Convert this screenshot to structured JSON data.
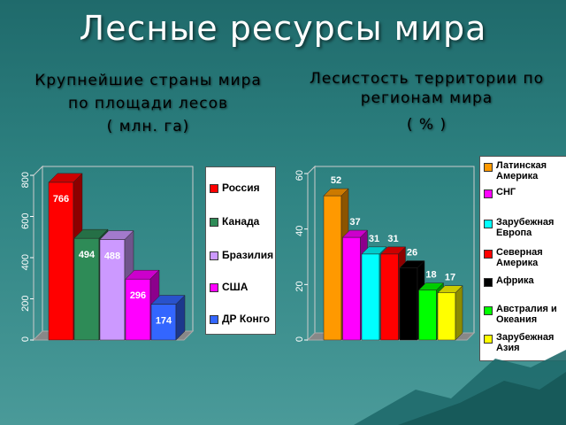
{
  "title": "Лесные ресурсы мира",
  "left_subtitle": [
    "Крупнейшие страны мира",
    "по площади лесов",
    "( млн. га)"
  ],
  "right_subtitle": [
    "Лесистость территории по",
    "регионам мира",
    "( % )"
  ],
  "colors": {
    "russia": "#ff0000",
    "canada": "#2e8b57",
    "brazil": "#cc99ff",
    "usa": "#ff00ff",
    "congo": "#3366ff",
    "latam": "#ff9900",
    "cis": "#ff00ff",
    "europe": "#00ffff",
    "namerica": "#ff0000",
    "africa": "#000000",
    "australia": "#00ff00",
    "asia": "#ffff00"
  },
  "chart_data": [
    {
      "type": "bar",
      "title": "",
      "categories": [
        "Россия",
        "Канада",
        "Бразилия",
        "США",
        "ДР Конго"
      ],
      "values": [
        766,
        494,
        488,
        296,
        174
      ],
      "ylim": [
        0,
        800
      ],
      "yticks": [
        0,
        200,
        400,
        600,
        800
      ],
      "legend": "right",
      "grid": false
    },
    {
      "type": "bar",
      "title": "",
      "categories": [
        "Латинская Америка",
        "СНГ",
        "Зарубежная Европа",
        "Северная Америка",
        "Африка",
        "Австралия и Океания",
        "Зарубежная Азия"
      ],
      "values": [
        52,
        37,
        31,
        31,
        26,
        18,
        17
      ],
      "ylim": [
        0,
        60
      ],
      "yticks": [
        0,
        20,
        40,
        60
      ],
      "legend": "right",
      "grid": false
    }
  ]
}
